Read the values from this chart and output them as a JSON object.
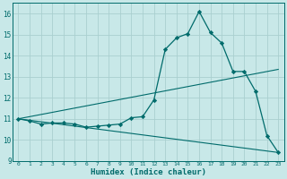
{
  "background_color": "#c8e8e8",
  "grid_color": "#aacfcf",
  "line_color": "#006b6b",
  "xlabel": "Humidex (Indice chaleur)",
  "xlim": [
    -0.5,
    23.5
  ],
  "ylim": [
    9,
    16.5
  ],
  "yticks": [
    9,
    10,
    11,
    12,
    13,
    14,
    15,
    16
  ],
  "xticks": [
    0,
    1,
    2,
    3,
    4,
    5,
    6,
    7,
    8,
    9,
    10,
    11,
    12,
    13,
    14,
    15,
    16,
    17,
    18,
    19,
    20,
    21,
    22,
    23
  ],
  "line1_x": [
    0,
    1,
    2,
    3,
    4,
    5,
    6,
    7,
    8,
    9,
    10,
    11,
    12,
    13,
    14,
    15,
    16,
    17,
    18,
    19,
    20,
    21,
    22,
    23
  ],
  "line1_y": [
    11.0,
    10.9,
    10.75,
    10.8,
    10.8,
    10.75,
    10.6,
    10.65,
    10.7,
    10.75,
    11.05,
    11.1,
    11.9,
    14.3,
    14.85,
    15.05,
    16.1,
    15.1,
    14.6,
    13.25,
    13.25,
    12.3,
    10.2,
    9.4
  ],
  "line2_x": [
    0,
    23
  ],
  "line2_y": [
    11.0,
    13.35
  ],
  "line3_x": [
    0,
    23
  ],
  "line3_y": [
    11.0,
    9.4
  ],
  "marker": "D",
  "markersize": 2.2,
  "linewidth1": 0.9,
  "linewidth2": 0.8
}
